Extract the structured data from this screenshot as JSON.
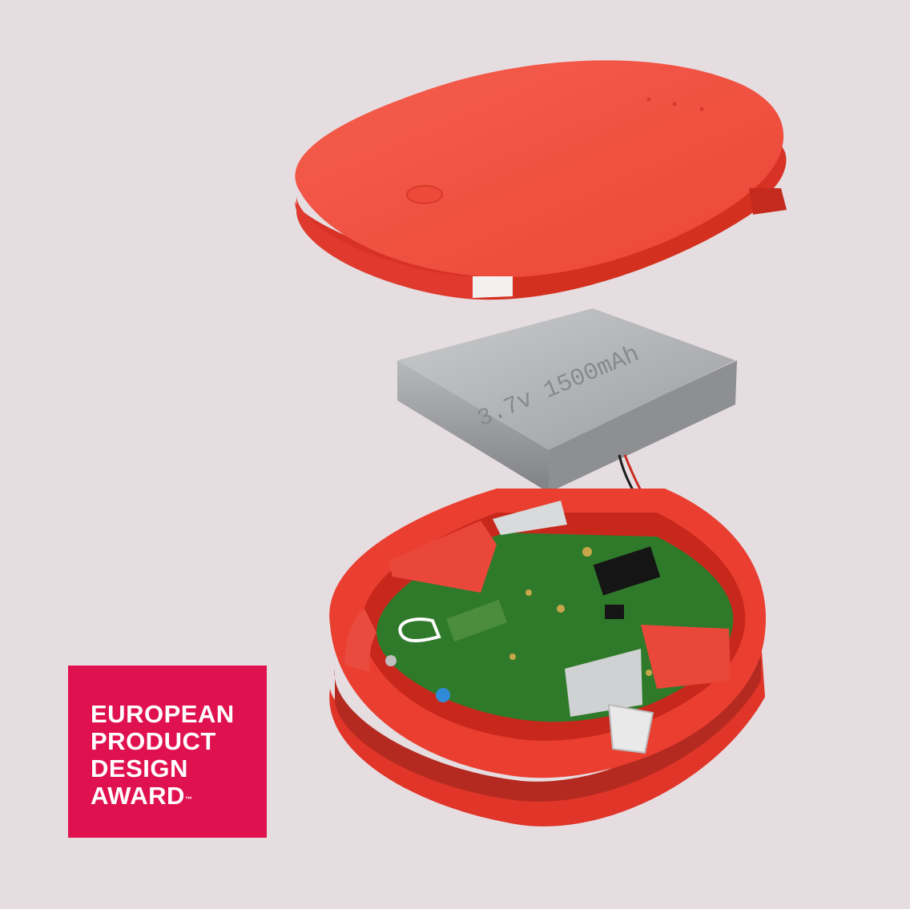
{
  "battery": {
    "label": "3.7v 1500mAh"
  },
  "award": {
    "lines": [
      "EUROPEAN",
      "PRODUCT",
      "DESIGN",
      "AWARD"
    ],
    "trademark": "™",
    "background": "#e0114f",
    "text_color": "#ffffff"
  },
  "colors": {
    "background": "#e6dde0",
    "shell": "#ef4335",
    "pcb": "#2f7a2a",
    "battery": "#a9abad"
  }
}
